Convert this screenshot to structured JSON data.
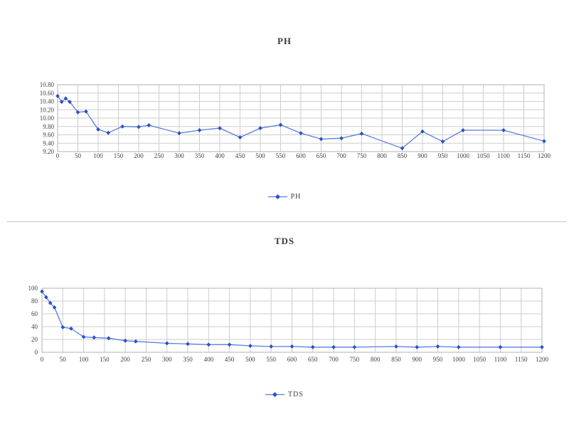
{
  "colors": {
    "series_line": "#5b7bdc",
    "series_marker": "#2b4fc7",
    "grid": "#cdcdcd",
    "plot_border": "#b0b0b0",
    "tick_text": "#3f3f3f"
  },
  "chart_data": [
    {
      "type": "line",
      "name": "PH",
      "title": "PH",
      "legend_label": "PH",
      "legend_position": "bottom-center",
      "grid": true,
      "xlim": [
        0,
        1200
      ],
      "ylim": [
        9.2,
        10.8
      ],
      "x_tick_labels": [
        "0",
        "50",
        "100",
        "150",
        "200",
        "250",
        "300",
        "350",
        "400",
        "450",
        "500",
        "550",
        "600",
        "650",
        "700",
        "750",
        "800",
        "850",
        "900",
        "950",
        "1000",
        "1050",
        "1100",
        "1150",
        "1200"
      ],
      "y_tick_labels": [
        "10.80",
        "10.60",
        "10.40",
        "10.20",
        "10.00",
        "9.80",
        "9.60",
        "9.40",
        "9.20"
      ],
      "x": [
        0,
        10,
        20,
        30,
        50,
        70,
        100,
        125,
        160,
        200,
        225,
        300,
        350,
        400,
        450,
        500,
        550,
        600,
        650,
        700,
        750,
        850,
        900,
        950,
        1000,
        1100,
        1200
      ],
      "y": [
        10.53,
        10.39,
        10.47,
        10.39,
        10.14,
        10.16,
        9.73,
        9.65,
        9.8,
        9.79,
        9.83,
        9.64,
        9.71,
        9.76,
        9.54,
        9.76,
        9.84,
        9.64,
        9.5,
        9.52,
        9.63,
        9.28,
        9.68,
        9.44,
        9.71,
        9.71,
        9.45
      ]
    },
    {
      "type": "line",
      "name": "TDS",
      "title": "TDS",
      "legend_label": "TDS",
      "legend_position": "bottom-center",
      "grid": true,
      "xlim": [
        0,
        1200
      ],
      "ylim": [
        0,
        100
      ],
      "x_tick_labels": [
        "0",
        "50",
        "100",
        "150",
        "200",
        "250",
        "300",
        "350",
        "400",
        "450",
        "500",
        "550",
        "600",
        "650",
        "700",
        "750",
        "800",
        "850",
        "900",
        "950",
        "1000",
        "1050",
        "1100",
        "1150",
        "1200"
      ],
      "y_tick_labels": [
        "100",
        "80",
        "60",
        "40",
        "20",
        "0"
      ],
      "x": [
        0,
        10,
        20,
        30,
        50,
        70,
        100,
        125,
        160,
        200,
        225,
        300,
        350,
        400,
        450,
        500,
        550,
        600,
        650,
        700,
        750,
        850,
        900,
        950,
        1000,
        1100,
        1200
      ],
      "y": [
        95,
        86,
        77,
        70,
        39,
        37,
        24,
        23,
        22,
        18,
        17,
        14,
        13,
        12,
        12,
        10,
        9,
        9,
        8,
        8,
        8,
        9,
        8,
        9,
        8,
        8,
        8
      ]
    }
  ]
}
